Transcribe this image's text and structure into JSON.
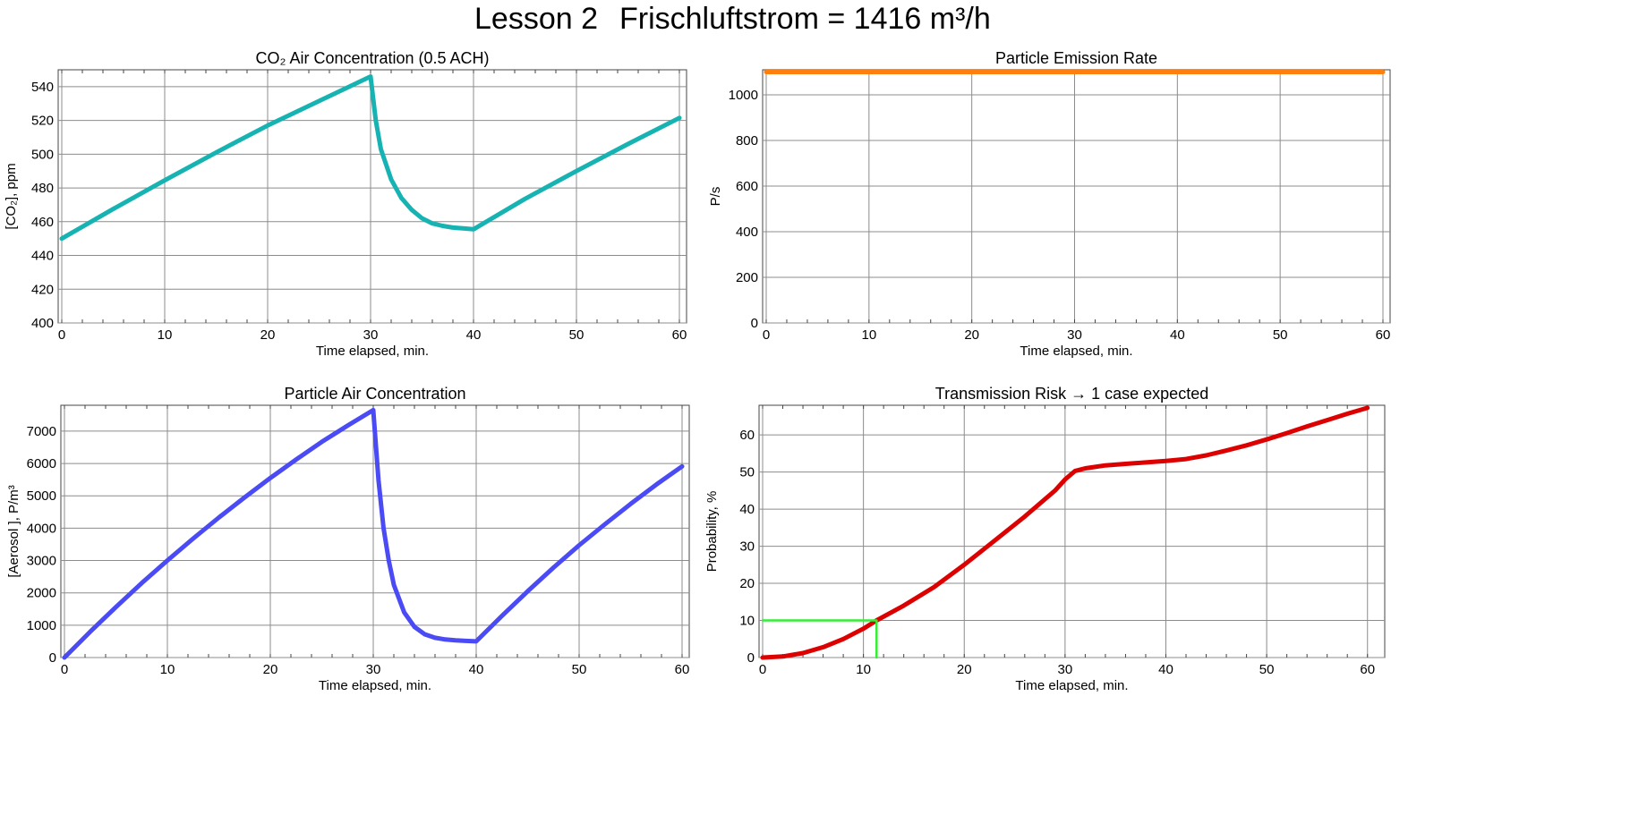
{
  "header": {
    "lesson": "Lesson 2",
    "airflow": "Frischluftstrom = 1416 m³/h"
  },
  "chart_data": [
    {
      "id": "co2",
      "type": "line",
      "title": "CO₂ Air Concentration    (0.5 ACH)",
      "xlabel": "Time elapsed,  min.",
      "ylabel": "[CO₂], ppm",
      "xlim": [
        0,
        60
      ],
      "ylim": [
        400,
        550
      ],
      "xticks": [
        0,
        10,
        20,
        30,
        40,
        50,
        60
      ],
      "yticks": [
        400,
        420,
        440,
        460,
        480,
        500,
        520,
        540
      ],
      "grid": true,
      "series": [
        {
          "color": "#17b3b3",
          "x": [
            0,
            5,
            10,
            15,
            20,
            25,
            30,
            30.5,
            31,
            32,
            33,
            34,
            35,
            36,
            37,
            38,
            39,
            40,
            45,
            50,
            55,
            60
          ],
          "y": [
            450,
            467.5,
            484.5,
            501,
            517,
            531.5,
            546,
            520,
            503,
            485,
            474,
            467,
            462,
            459,
            457.5,
            456.5,
            456,
            455.5,
            473.5,
            490,
            506,
            521.5
          ]
        }
      ]
    },
    {
      "id": "emission",
      "type": "line",
      "title": "Particle Emission Rate",
      "xlabel": "Time elapsed,  min.",
      "ylabel": "P/s",
      "xlim": [
        0,
        60
      ],
      "ylim": [
        0,
        1110
      ],
      "xticks": [
        0,
        10,
        20,
        30,
        40,
        50,
        60
      ],
      "yticks": [
        0,
        200,
        400,
        600,
        800,
        1000
      ],
      "grid": true,
      "series": [
        {
          "color": "#ff7f0e",
          "x": [
            0,
            60
          ],
          "y": [
            1100,
            1100
          ]
        }
      ]
    },
    {
      "id": "aerosol",
      "type": "line",
      "title": "Particle Air Concentration",
      "xlabel": "Time elapsed,  min.",
      "ylabel": "[Aerosol ], P/m³",
      "xlim": [
        0,
        60
      ],
      "ylim": [
        0,
        7800
      ],
      "xticks": [
        0,
        10,
        20,
        30,
        40,
        50,
        60
      ],
      "yticks": [
        0,
        1000,
        2000,
        3000,
        4000,
        5000,
        6000,
        7000
      ],
      "grid": true,
      "series": [
        {
          "color": "#4b4bf5",
          "x": [
            0,
            2.5,
            5,
            7.5,
            10,
            12.5,
            15,
            17.5,
            20,
            22.5,
            25,
            27.5,
            30,
            30.5,
            31,
            31.5,
            32,
            33,
            34,
            35,
            36,
            37,
            38,
            39,
            40,
            42.5,
            45,
            47.5,
            50,
            52.5,
            55,
            57.5,
            60
          ],
          "y": [
            0,
            800,
            1560,
            2300,
            3000,
            3680,
            4330,
            4950,
            5550,
            6120,
            6670,
            7170,
            7650,
            5500,
            4000,
            3000,
            2250,
            1400,
            950,
            720,
            610,
            560,
            530,
            515,
            500,
            1290,
            2050,
            2780,
            3470,
            4120,
            4750,
            5350,
            5910
          ]
        }
      ]
    },
    {
      "id": "risk",
      "type": "line",
      "title": "Transmission Risk  →  1 case expected",
      "xlabel": "Time elapsed,  min.",
      "ylabel": "Probability,  %",
      "xlim": [
        0,
        61
      ],
      "ylim": [
        0,
        68
      ],
      "xticks": [
        0,
        10,
        20,
        30,
        40,
        50,
        60
      ],
      "yticks": [
        0,
        10,
        20,
        30,
        40,
        50,
        60
      ],
      "grid": true,
      "series": [
        {
          "color": "#dd0000",
          "x": [
            0,
            2,
            4,
            6,
            8,
            10,
            11.3,
            14,
            17,
            20,
            23,
            26,
            29,
            30,
            31,
            32,
            34,
            36,
            38,
            40,
            42,
            44,
            46,
            48,
            50,
            52,
            54,
            56,
            58,
            60
          ],
          "y": [
            0,
            0.3,
            1.2,
            2.8,
            5,
            7.8,
            10,
            14,
            19,
            25,
            31.5,
            38,
            45,
            48,
            50.3,
            51,
            51.8,
            52.2,
            52.6,
            53,
            53.5,
            54.5,
            55.8,
            57.2,
            58.8,
            60.5,
            62.3,
            64,
            65.7,
            67.3
          ]
        },
        {
          "color": "#33ee33",
          "x": [
            0,
            11.3,
            11.3
          ],
          "y": [
            10,
            10,
            0
          ]
        }
      ]
    }
  ]
}
